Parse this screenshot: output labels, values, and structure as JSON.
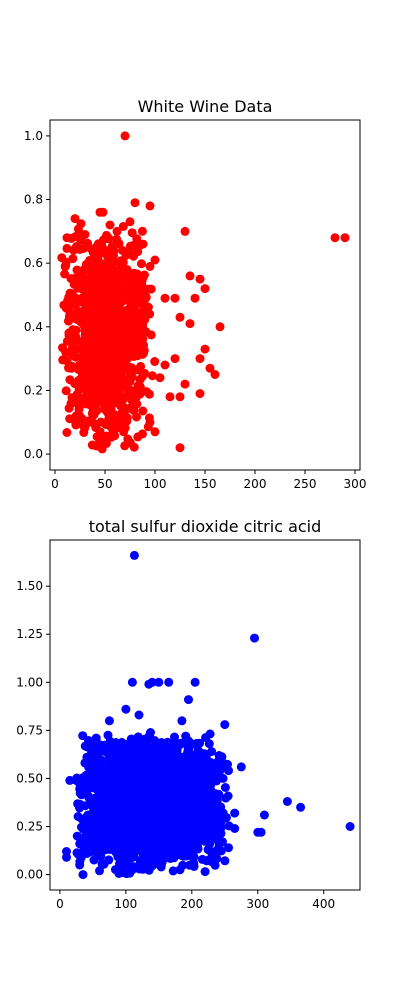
{
  "charts": [
    {
      "type": "scatter",
      "title": "White Wine Data",
      "color": "#ff0000",
      "xlim": [
        -5,
        305
      ],
      "ylim": [
        -0.05,
        1.05
      ],
      "xticks": [
        0,
        50,
        100,
        150,
        200,
        250,
        300
      ],
      "xtick_labels": [
        "0",
        "50",
        "100",
        "150",
        "200",
        "250",
        "300"
      ],
      "yticks": [
        0.0,
        0.2,
        0.4,
        0.6,
        0.8,
        1.0
      ],
      "ytick_labels": [
        "0.0",
        "0.2",
        "0.4",
        "0.6",
        "0.8",
        "1.0"
      ],
      "points": [
        [
          70,
          1.0
        ],
        [
          80,
          0.79
        ],
        [
          95,
          0.78
        ],
        [
          130,
          0.7
        ],
        [
          280,
          0.68
        ],
        [
          290,
          0.68
        ],
        [
          45,
          0.76
        ],
        [
          48,
          0.76
        ],
        [
          20,
          0.74
        ],
        [
          55,
          0.72
        ],
        [
          75,
          0.73
        ],
        [
          62,
          0.7
        ],
        [
          30,
          0.69
        ],
        [
          12,
          0.68
        ],
        [
          88,
          0.66
        ],
        [
          100,
          0.61
        ],
        [
          95,
          0.59
        ],
        [
          135,
          0.56
        ],
        [
          145,
          0.55
        ],
        [
          150,
          0.52
        ],
        [
          140,
          0.49
        ],
        [
          110,
          0.49
        ],
        [
          120,
          0.49
        ],
        [
          165,
          0.4
        ],
        [
          125,
          0.43
        ],
        [
          135,
          0.41
        ],
        [
          150,
          0.33
        ],
        [
          145,
          0.3
        ],
        [
          160,
          0.25
        ],
        [
          155,
          0.27
        ],
        [
          145,
          0.19
        ],
        [
          115,
          0.18
        ],
        [
          125,
          0.18
        ],
        [
          125,
          0.02
        ],
        [
          100,
          0.07
        ],
        [
          95,
          0.1
        ],
        [
          110,
          0.28
        ],
        [
          105,
          0.24
        ],
        [
          120,
          0.3
        ],
        [
          130,
          0.22
        ]
      ],
      "cluster": {
        "x_min": 6,
        "x_max": 100,
        "y_min": 0.0,
        "y_max": 0.74,
        "count": 1000,
        "seed": 17
      }
    },
    {
      "type": "scatter",
      "title": "total sulfur dioxide citric acid",
      "color": "#0000ff",
      "xlim": [
        -15,
        455
      ],
      "ylim": [
        -0.08,
        1.74
      ],
      "xticks": [
        0,
        100,
        200,
        300,
        400
      ],
      "xtick_labels": [
        "0",
        "100",
        "200",
        "300",
        "400"
      ],
      "yticks": [
        0.0,
        0.25,
        0.5,
        0.75,
        1.0,
        1.25,
        1.5
      ],
      "ytick_labels": [
        "0.00",
        "0.25",
        "0.50",
        "0.75",
        "1.00",
        "1.25",
        "1.50"
      ],
      "points": [
        [
          113,
          1.66
        ],
        [
          295,
          1.23
        ],
        [
          440,
          0.25
        ],
        [
          365,
          0.35
        ],
        [
          345,
          0.38
        ],
        [
          310,
          0.31
        ],
        [
          300,
          0.22
        ],
        [
          305,
          0.22
        ],
        [
          275,
          0.56
        ],
        [
          250,
          0.78
        ],
        [
          195,
          0.91
        ],
        [
          205,
          1.0
        ],
        [
          140,
          1.0
        ],
        [
          150,
          1.0
        ],
        [
          165,
          1.0
        ],
        [
          110,
          1.0
        ],
        [
          135,
          0.99
        ],
        [
          100,
          0.86
        ],
        [
          120,
          0.83
        ],
        [
          75,
          0.8
        ],
        [
          55,
          0.71
        ],
        [
          15,
          0.49
        ],
        [
          25,
          0.49
        ],
        [
          10,
          0.12
        ],
        [
          10,
          0.09
        ],
        [
          30,
          0.16
        ],
        [
          45,
          0.13
        ],
        [
          30,
          0.05
        ],
        [
          35,
          0.0
        ],
        [
          60,
          0.02
        ],
        [
          240,
          0.33
        ],
        [
          265,
          0.32
        ],
        [
          265,
          0.24
        ],
        [
          245,
          0.28
        ],
        [
          225,
          0.22
        ],
        [
          215,
          0.18
        ],
        [
          185,
          0.8
        ],
        [
          230,
          0.64
        ],
        [
          250,
          0.56
        ],
        [
          35,
          0.12
        ]
      ],
      "cluster": {
        "x_min": 20,
        "x_max": 260,
        "y_min": 0.0,
        "y_max": 0.75,
        "count": 2400,
        "seed": 29
      }
    }
  ]
}
